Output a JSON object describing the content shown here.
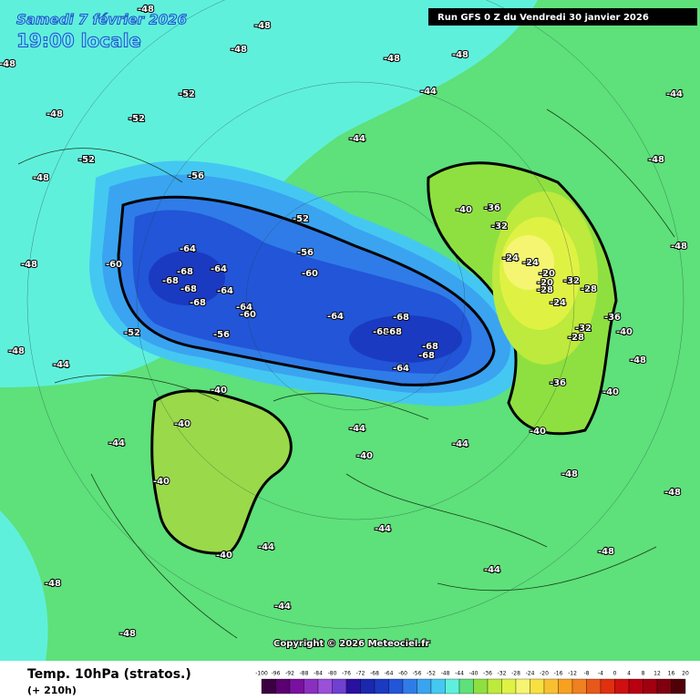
{
  "header": {
    "date": "Samedi 7 février 2026",
    "time": "19:00 locale",
    "run": "Run GFS 0 Z du Vendredi 30 janvier 2026"
  },
  "footer": {
    "copyright": "Copyright © 2026 Meteociel.fr",
    "title": "Temp. 10hPa (stratos.)",
    "lead": "(+ 210h)"
  },
  "scale": {
    "ticks": [
      -100,
      -96,
      -92,
      -88,
      -84,
      -80,
      -76,
      -72,
      -68,
      -64,
      -60,
      -56,
      -52,
      -48,
      -44,
      -40,
      -36,
      -32,
      -28,
      -24,
      -20,
      -16,
      -12,
      -8,
      -4,
      0,
      4,
      8,
      12,
      16,
      20
    ]
  },
  "map": {
    "contour_labels": [
      -48,
      -48,
      -48,
      -48,
      -48,
      -48,
      -48,
      -48,
      -48,
      -48,
      -48,
      -48,
      -48,
      -48,
      -48,
      -48,
      -48,
      -48,
      -52,
      -52,
      -52,
      -52,
      -52,
      -56,
      -56,
      -56,
      -60,
      -60,
      -60,
      -64,
      -64,
      -64,
      -64,
      -64,
      -64,
      -68,
      -68,
      -68,
      -68,
      -68,
      -68,
      -68,
      -68,
      -68,
      -44,
      -44,
      -44,
      -44,
      -44,
      -44,
      -44,
      -44,
      -44,
      -44,
      -44,
      -40,
      -40,
      -40,
      -40,
      -40,
      -40,
      -40,
      -40,
      -40,
      -36,
      -36,
      -36,
      -32,
      -32,
      -32,
      -28,
      -28,
      -28,
      -24,
      -24,
      -24,
      -20,
      -20
    ]
  }
}
